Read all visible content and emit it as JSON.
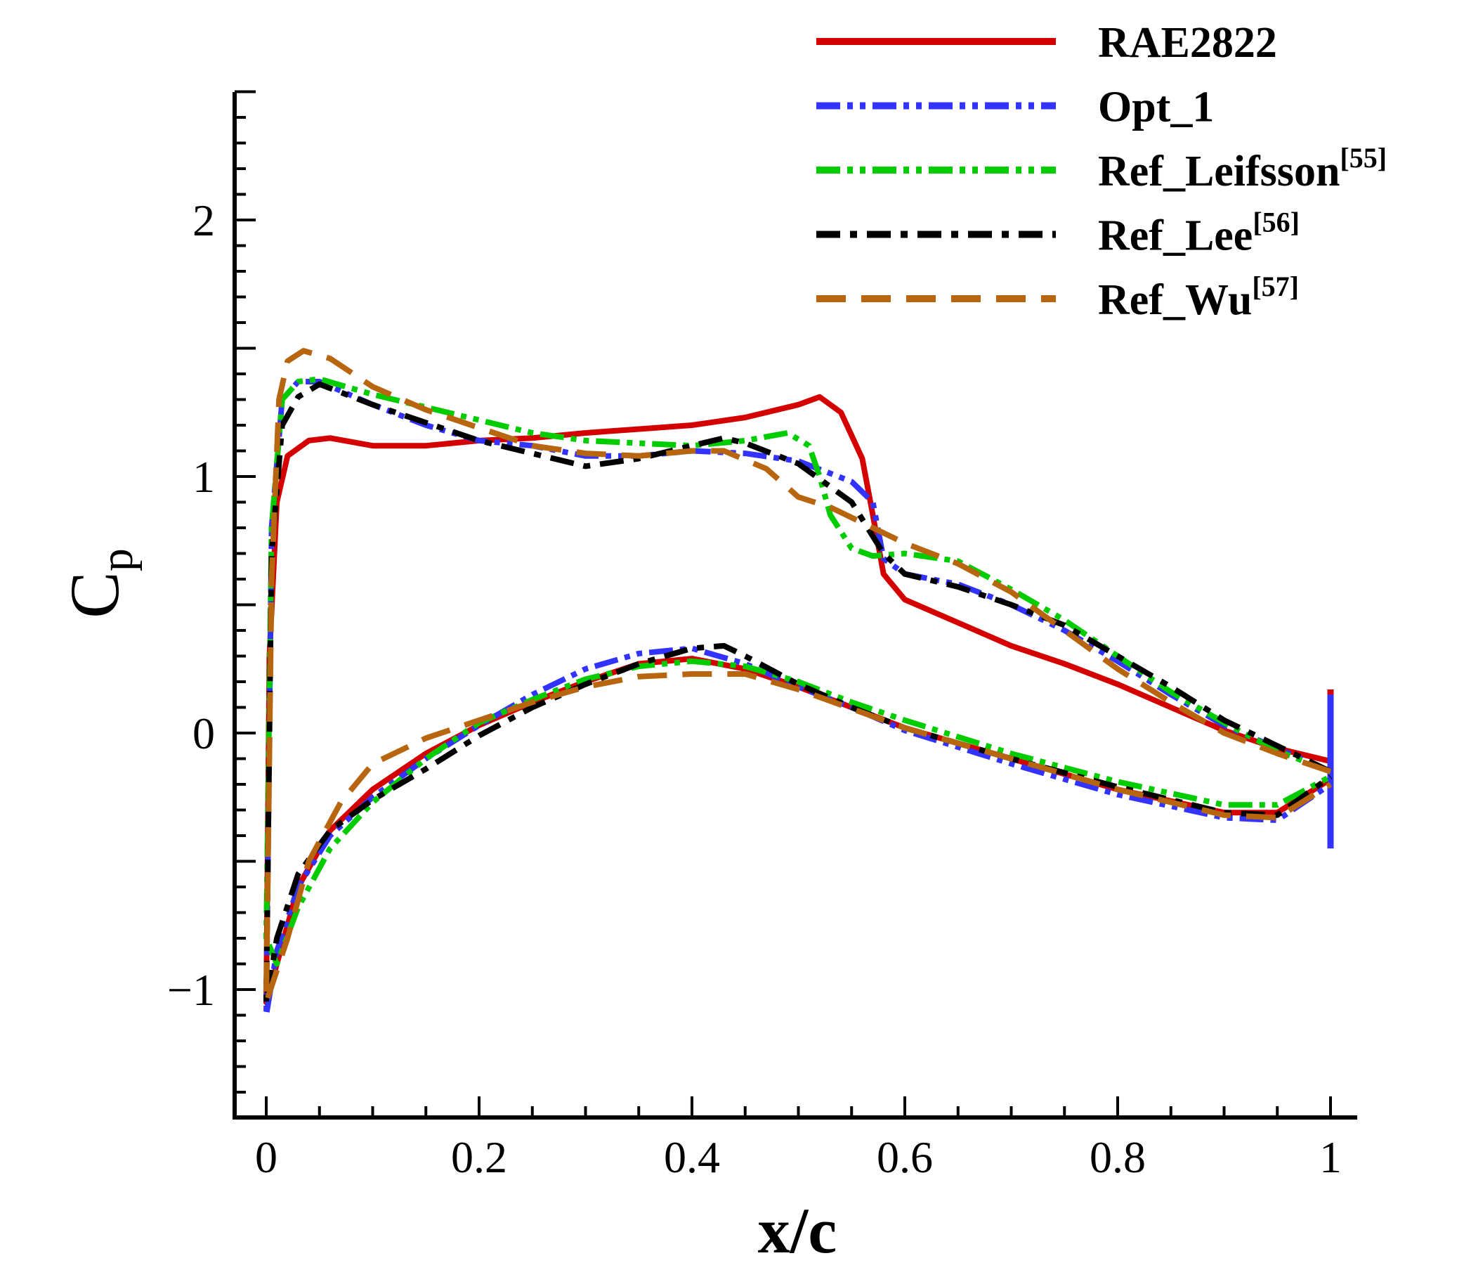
{
  "chart_data": {
    "type": "line",
    "title": "",
    "xlabel": "x/c",
    "ylabel": "C",
    "ylabel_sub": "p",
    "xlim": [
      -0.03,
      1.024
    ],
    "ylim": [
      -1.5,
      2.5
    ],
    "x_ticks": [
      0,
      0.2,
      0.4,
      0.6,
      0.8,
      1
    ],
    "x_tick_labels": [
      "0",
      "0.2",
      "0.4",
      "0.6",
      "0.8",
      "1"
    ],
    "y_ticks": [
      -1,
      0,
      1,
      2
    ],
    "y_tick_labels": [
      "−1",
      "0",
      "1",
      "2"
    ],
    "grid": false,
    "legend_position": "top-right",
    "series": [
      {
        "name": "RAE2822",
        "sup": "",
        "color": "#d40000",
        "style": "solid",
        "upper": [
          [
            0,
            -1.05
          ],
          [
            0.003,
            0.3
          ],
          [
            0.01,
            0.9
          ],
          [
            0.02,
            1.08
          ],
          [
            0.04,
            1.14
          ],
          [
            0.06,
            1.15
          ],
          [
            0.1,
            1.12
          ],
          [
            0.15,
            1.12
          ],
          [
            0.2,
            1.14
          ],
          [
            0.25,
            1.15
          ],
          [
            0.3,
            1.17
          ],
          [
            0.4,
            1.2
          ],
          [
            0.45,
            1.23
          ],
          [
            0.5,
            1.28
          ],
          [
            0.52,
            1.31
          ],
          [
            0.54,
            1.25
          ],
          [
            0.56,
            1.07
          ],
          [
            0.57,
            0.85
          ],
          [
            0.58,
            0.62
          ],
          [
            0.6,
            0.52
          ],
          [
            0.65,
            0.43
          ],
          [
            0.7,
            0.34
          ],
          [
            0.75,
            0.27
          ],
          [
            0.8,
            0.19
          ],
          [
            0.85,
            0.1
          ],
          [
            0.9,
            0.01
          ],
          [
            0.95,
            -0.06
          ],
          [
            1,
            -0.11
          ]
        ],
        "lower": [
          [
            0,
            -1.05
          ],
          [
            0.01,
            -0.9
          ],
          [
            0.03,
            -0.6
          ],
          [
            0.06,
            -0.38
          ],
          [
            0.1,
            -0.22
          ],
          [
            0.15,
            -0.08
          ],
          [
            0.2,
            0.03
          ],
          [
            0.25,
            0.12
          ],
          [
            0.3,
            0.2
          ],
          [
            0.35,
            0.27
          ],
          [
            0.4,
            0.29
          ],
          [
            0.45,
            0.25
          ],
          [
            0.5,
            0.18
          ],
          [
            0.55,
            0.1
          ],
          [
            0.6,
            0.02
          ],
          [
            0.7,
            -0.1
          ],
          [
            0.8,
            -0.22
          ],
          [
            0.9,
            -0.31
          ],
          [
            0.95,
            -0.31
          ],
          [
            1,
            -0.18
          ]
        ],
        "te_spike": [
          0.17,
          -0.1
        ]
      },
      {
        "name": "Opt_1",
        "sup": "",
        "color": "#3333ff",
        "style": "dash-dot-dot",
        "upper": [
          [
            0,
            -1.1
          ],
          [
            0.005,
            0.8
          ],
          [
            0.015,
            1.3
          ],
          [
            0.03,
            1.37
          ],
          [
            0.05,
            1.37
          ],
          [
            0.1,
            1.28
          ],
          [
            0.15,
            1.2
          ],
          [
            0.2,
            1.14
          ],
          [
            0.25,
            1.12
          ],
          [
            0.3,
            1.08
          ],
          [
            0.35,
            1.08
          ],
          [
            0.4,
            1.1
          ],
          [
            0.45,
            1.09
          ],
          [
            0.5,
            1.06
          ],
          [
            0.55,
            0.98
          ],
          [
            0.57,
            0.9
          ],
          [
            0.58,
            0.68
          ],
          [
            0.6,
            0.62
          ],
          [
            0.65,
            0.58
          ],
          [
            0.7,
            0.5
          ],
          [
            0.75,
            0.4
          ],
          [
            0.8,
            0.28
          ],
          [
            0.85,
            0.15
          ],
          [
            0.9,
            0.03
          ],
          [
            0.95,
            -0.06
          ],
          [
            1,
            -0.15
          ]
        ],
        "lower": [
          [
            0,
            -1.1
          ],
          [
            0.01,
            -0.85
          ],
          [
            0.03,
            -0.6
          ],
          [
            0.06,
            -0.4
          ],
          [
            0.1,
            -0.25
          ],
          [
            0.15,
            -0.1
          ],
          [
            0.2,
            0.03
          ],
          [
            0.25,
            0.15
          ],
          [
            0.3,
            0.25
          ],
          [
            0.35,
            0.31
          ],
          [
            0.4,
            0.33
          ],
          [
            0.45,
            0.27
          ],
          [
            0.5,
            0.18
          ],
          [
            0.55,
            0.1
          ],
          [
            0.6,
            0.01
          ],
          [
            0.7,
            -0.12
          ],
          [
            0.8,
            -0.24
          ],
          [
            0.9,
            -0.33
          ],
          [
            0.95,
            -0.34
          ],
          [
            1,
            -0.2
          ]
        ],
        "te_spike": [
          0.15,
          -0.45
        ]
      },
      {
        "name": "Ref_Leifsson",
        "sup": "[55]",
        "color": "#00cc00",
        "style": "dash-dot-dot",
        "upper": [
          [
            0,
            -0.8
          ],
          [
            0.005,
            0.8
          ],
          [
            0.015,
            1.3
          ],
          [
            0.03,
            1.37
          ],
          [
            0.05,
            1.38
          ],
          [
            0.1,
            1.32
          ],
          [
            0.2,
            1.22
          ],
          [
            0.25,
            1.17
          ],
          [
            0.3,
            1.14
          ],
          [
            0.4,
            1.12
          ],
          [
            0.45,
            1.14
          ],
          [
            0.49,
            1.17
          ],
          [
            0.51,
            1.12
          ],
          [
            0.52,
            1.0
          ],
          [
            0.53,
            0.85
          ],
          [
            0.55,
            0.72
          ],
          [
            0.57,
            0.69
          ],
          [
            0.6,
            0.7
          ],
          [
            0.65,
            0.67
          ],
          [
            0.7,
            0.56
          ],
          [
            0.75,
            0.44
          ],
          [
            0.8,
            0.3
          ],
          [
            0.85,
            0.16
          ],
          [
            0.9,
            0.04
          ],
          [
            0.95,
            -0.07
          ],
          [
            1,
            -0.15
          ]
        ],
        "lower": [
          [
            0,
            -0.8
          ],
          [
            0.01,
            -0.9
          ],
          [
            0.03,
            -0.68
          ],
          [
            0.06,
            -0.45
          ],
          [
            0.1,
            -0.27
          ],
          [
            0.15,
            -0.1
          ],
          [
            0.2,
            0.04
          ],
          [
            0.25,
            0.13
          ],
          [
            0.3,
            0.21
          ],
          [
            0.35,
            0.26
          ],
          [
            0.4,
            0.28
          ],
          [
            0.45,
            0.26
          ],
          [
            0.5,
            0.2
          ],
          [
            0.55,
            0.12
          ],
          [
            0.6,
            0.05
          ],
          [
            0.7,
            -0.08
          ],
          [
            0.8,
            -0.19
          ],
          [
            0.9,
            -0.28
          ],
          [
            0.95,
            -0.28
          ],
          [
            1,
            -0.17
          ]
        ]
      },
      {
        "name": "Ref_Lee",
        "sup": "[56]",
        "color": "#000000",
        "style": "dash-dot",
        "upper": [
          [
            0,
            -1.05
          ],
          [
            0.005,
            0.7
          ],
          [
            0.015,
            1.2
          ],
          [
            0.03,
            1.31
          ],
          [
            0.05,
            1.36
          ],
          [
            0.1,
            1.28
          ],
          [
            0.2,
            1.14
          ],
          [
            0.3,
            1.04
          ],
          [
            0.35,
            1.07
          ],
          [
            0.4,
            1.12
          ],
          [
            0.43,
            1.15
          ],
          [
            0.45,
            1.13
          ],
          [
            0.5,
            1.05
          ],
          [
            0.55,
            0.9
          ],
          [
            0.58,
            0.7
          ],
          [
            0.6,
            0.62
          ],
          [
            0.65,
            0.57
          ],
          [
            0.7,
            0.5
          ],
          [
            0.75,
            0.42
          ],
          [
            0.8,
            0.3
          ],
          [
            0.85,
            0.18
          ],
          [
            0.9,
            0.05
          ],
          [
            0.95,
            -0.05
          ],
          [
            1,
            -0.15
          ]
        ],
        "lower": [
          [
            0,
            -1.05
          ],
          [
            0.01,
            -0.8
          ],
          [
            0.03,
            -0.55
          ],
          [
            0.06,
            -0.38
          ],
          [
            0.1,
            -0.26
          ],
          [
            0.15,
            -0.14
          ],
          [
            0.2,
            -0.01
          ],
          [
            0.25,
            0.1
          ],
          [
            0.3,
            0.19
          ],
          [
            0.35,
            0.27
          ],
          [
            0.4,
            0.33
          ],
          [
            0.43,
            0.34
          ],
          [
            0.45,
            0.3
          ],
          [
            0.5,
            0.19
          ],
          [
            0.55,
            0.1
          ],
          [
            0.6,
            0.02
          ],
          [
            0.7,
            -0.1
          ],
          [
            0.8,
            -0.21
          ],
          [
            0.9,
            -0.31
          ],
          [
            0.95,
            -0.32
          ],
          [
            1,
            -0.17
          ]
        ]
      },
      {
        "name": "Ref_Wu",
        "sup": "[57]",
        "color": "#b8650f",
        "style": "dashed",
        "upper": [
          [
            0,
            -1.05
          ],
          [
            0.005,
            0.6
          ],
          [
            0.012,
            1.3
          ],
          [
            0.02,
            1.45
          ],
          [
            0.035,
            1.49
          ],
          [
            0.06,
            1.46
          ],
          [
            0.1,
            1.35
          ],
          [
            0.15,
            1.26
          ],
          [
            0.2,
            1.19
          ],
          [
            0.25,
            1.12
          ],
          [
            0.3,
            1.09
          ],
          [
            0.35,
            1.08
          ],
          [
            0.4,
            1.1
          ],
          [
            0.43,
            1.1
          ],
          [
            0.47,
            1.03
          ],
          [
            0.5,
            0.92
          ],
          [
            0.53,
            0.88
          ],
          [
            0.57,
            0.8
          ],
          [
            0.6,
            0.74
          ],
          [
            0.65,
            0.66
          ],
          [
            0.7,
            0.55
          ],
          [
            0.75,
            0.4
          ],
          [
            0.8,
            0.25
          ],
          [
            0.85,
            0.12
          ],
          [
            0.9,
            0.0
          ],
          [
            0.95,
            -0.08
          ],
          [
            1,
            -0.15
          ]
        ],
        "lower": [
          [
            0,
            -1.05
          ],
          [
            0.02,
            -0.8
          ],
          [
            0.04,
            -0.5
          ],
          [
            0.07,
            -0.27
          ],
          [
            0.1,
            -0.12
          ],
          [
            0.15,
            -0.02
          ],
          [
            0.2,
            0.05
          ],
          [
            0.25,
            0.12
          ],
          [
            0.3,
            0.18
          ],
          [
            0.35,
            0.22
          ],
          [
            0.4,
            0.23
          ],
          [
            0.45,
            0.23
          ],
          [
            0.5,
            0.17
          ],
          [
            0.6,
            0.02
          ],
          [
            0.7,
            -0.1
          ],
          [
            0.8,
            -0.22
          ],
          [
            0.9,
            -0.32
          ],
          [
            0.95,
            -0.33
          ],
          [
            1,
            -0.2
          ]
        ]
      }
    ]
  }
}
